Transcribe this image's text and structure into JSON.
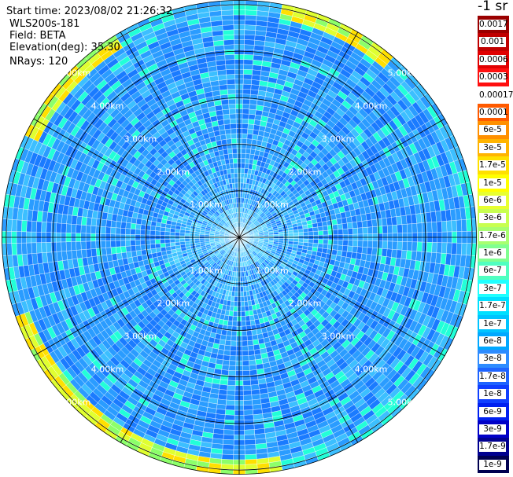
{
  "header": {
    "start_time": "Start time: 2023/08/02 21:26:32",
    "instrument": "WLS200s-181",
    "field": "Field: BETA",
    "elevation": "Elevation(deg): 35.30",
    "nrays": "NRays: 120"
  },
  "colorbar": {
    "units_label": "-1 sr",
    "ticks": [
      "0.0017",
      "0.001",
      "0.0006",
      "0.0003",
      "0.00017",
      "0.0001",
      "6e-5",
      "3e-5",
      "1.7e-5",
      "1e-5",
      "6e-6",
      "3e-6",
      "1.7e-6",
      "1e-6",
      "6e-7",
      "3e-7",
      "1.7e-7",
      "1e-7",
      "6e-8",
      "3e-8",
      "1.7e-8",
      "1e-8",
      "6e-9",
      "3e-9",
      "1.7e-9",
      "1e-9"
    ],
    "colors": [
      "#9a0000",
      "#c00000",
      "#e00000",
      "#ff1010",
      "#ffffff",
      "#ff5a00",
      "#ff9000",
      "#ffb400",
      "#ffe000",
      "#ffff00",
      "#e8ff30",
      "#c8ff50",
      "#a8ff70",
      "#80ff90",
      "#50ffc0",
      "#20ffff",
      "#00e0ff",
      "#00c4ff",
      "#00a8ff",
      "#2d8cff",
      "#1e64ff",
      "#1040ff",
      "#0020f0",
      "#0000c8",
      "#000090",
      "#000050"
    ]
  },
  "chart_data": {
    "type": "ppi",
    "field": "BETA",
    "elevation_deg": 35.3,
    "n_rays": 120,
    "range_rings": [
      "1.00km",
      "2.00km",
      "3.00km",
      "4.00km",
      "5.00km"
    ],
    "max_range_km": 5.1,
    "azimuth_lines_deg": [
      0,
      30,
      60,
      90,
      120,
      150
    ],
    "scale": "log"
  }
}
